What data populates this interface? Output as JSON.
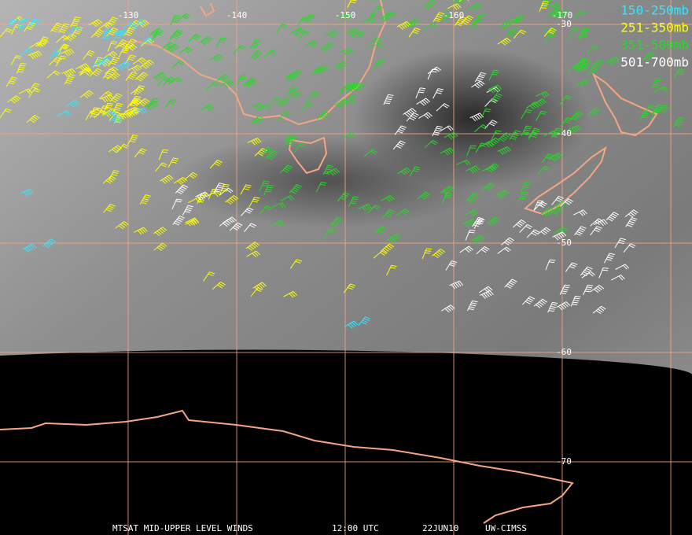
{
  "map": {
    "longitude_labels": [
      -130,
      -140,
      -150,
      -160,
      -170
    ],
    "latitude_labels": [
      -30,
      -40,
      -50,
      -60,
      -70
    ],
    "legend": [
      {
        "label": "150-250mb",
        "color": "#33e6ff"
      },
      {
        "label": "251-350mb",
        "color": "#ffff00"
      },
      {
        "label": "351-500mb",
        "color": "#22dd22"
      },
      {
        "label": "501-700mb",
        "color": "#ffffff"
      }
    ],
    "footer": [
      "MTSAT MID-UPPER LEVEL WINDS",
      "12:00 UTC",
      "22JUN10",
      "UW-CIMSS"
    ]
  }
}
